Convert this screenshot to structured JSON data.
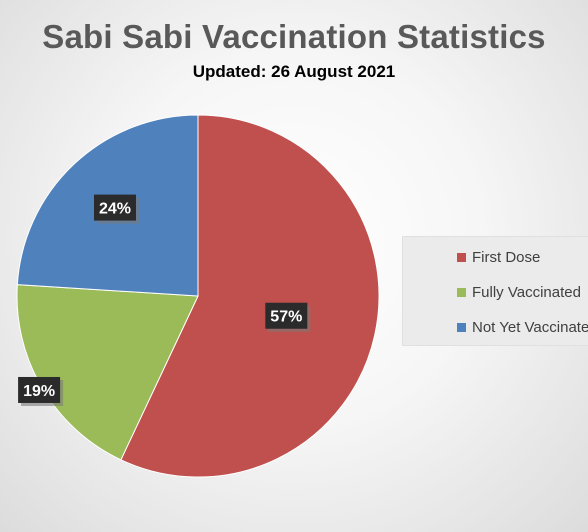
{
  "chart_data": {
    "type": "pie",
    "title": "Sabi Sabi Vaccination Statistics",
    "subtitle": "Updated: 26 August 2021",
    "slices": [
      {
        "label": "First Dose",
        "value": 57,
        "data_label": "57%",
        "color": "#c0504d"
      },
      {
        "label": "Fully Vaccinated",
        "value": 19,
        "data_label": "19%",
        "color": "#9bbb59"
      },
      {
        "label": "Not Yet Vaccinated",
        "value": 24,
        "data_label": "24%",
        "color": "#4f81bd"
      }
    ],
    "legend_position": "right"
  }
}
